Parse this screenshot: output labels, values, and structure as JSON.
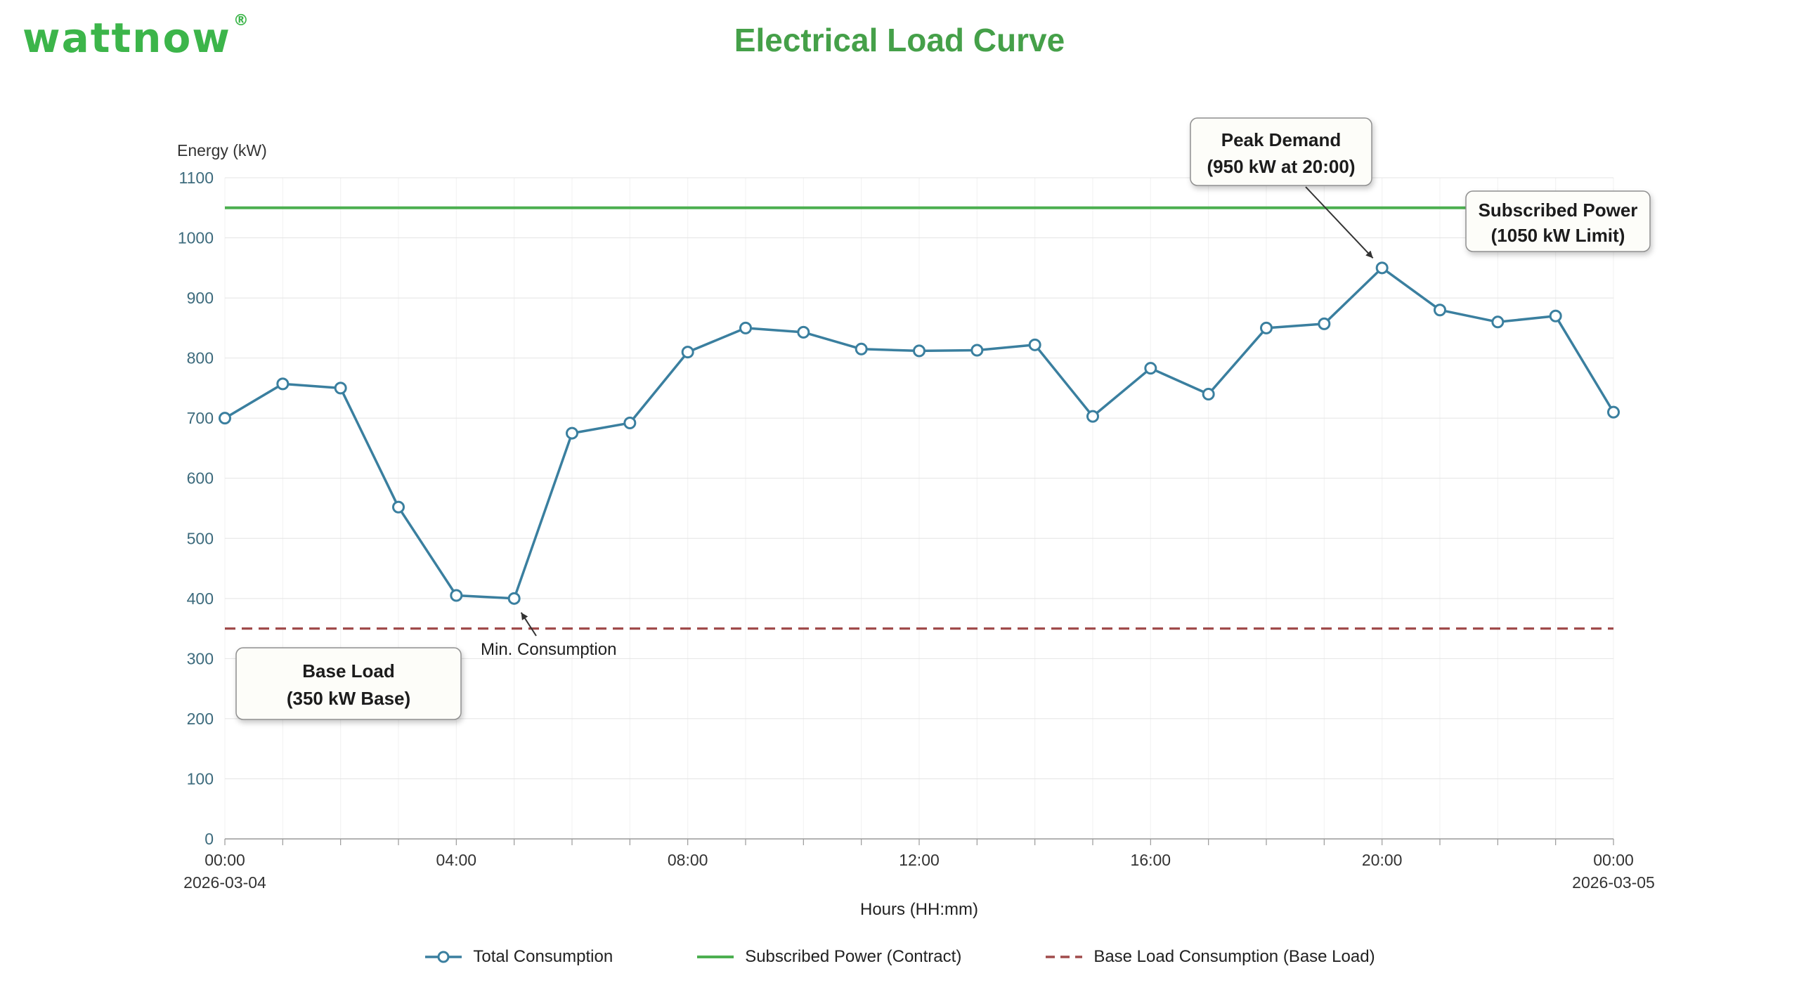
{
  "header": {
    "logo_text": "wattnow",
    "registered_mark": "®"
  },
  "chart_data": {
    "type": "line",
    "title": "Electrical Load Curve",
    "xlabel": "Hours (HH:mm)",
    "ylabel": "Energy (kW)",
    "ylim": [
      0,
      1100
    ],
    "y_ticks": [
      0,
      100,
      200,
      300,
      400,
      500,
      600,
      700,
      800,
      900,
      1000,
      1100
    ],
    "x_ticks": [
      {
        "label": "00:00",
        "sub": "2026-03-04",
        "hour": 0
      },
      {
        "label": "04:00",
        "hour": 4
      },
      {
        "label": "08:00",
        "hour": 8
      },
      {
        "label": "12:00",
        "hour": 12
      },
      {
        "label": "16:00",
        "hour": 16
      },
      {
        "label": "20:00",
        "hour": 20
      },
      {
        "label": "00:00",
        "sub": "2026-03-05",
        "hour": 24
      }
    ],
    "grid": true,
    "legend_position": "bottom",
    "series": [
      {
        "name": "Total Consumption",
        "style": "line-marker",
        "color": "#3a7f9f",
        "x_hours": [
          0,
          1,
          2,
          3,
          4,
          5,
          6,
          7,
          8,
          9,
          10,
          11,
          12,
          13,
          14,
          15,
          16,
          17,
          18,
          19,
          20,
          21,
          22,
          23,
          24
        ],
        "values": [
          700,
          757,
          750,
          552,
          405,
          400,
          675,
          692,
          810,
          850,
          843,
          815,
          812,
          813,
          822,
          703,
          783,
          740,
          850,
          857,
          950,
          880,
          860,
          870,
          710
        ]
      },
      {
        "name": "Subscribed Power (Contract)",
        "style": "line",
        "color": "#4caf50",
        "value": 1050
      },
      {
        "name": "Base Load Consumption (Base Load)",
        "style": "dashed",
        "color": "#a04b4b",
        "value": 350
      }
    ],
    "annotations": [
      {
        "id": "peak-demand",
        "lines": [
          "Peak Demand",
          "(950 kW at 20:00)"
        ],
        "anchor_hour": 20,
        "anchor_value": 950
      },
      {
        "id": "subscribed-power",
        "lines": [
          "Subscribed Power",
          "(1050 kW Limit)"
        ]
      },
      {
        "id": "base-load",
        "lines": [
          "Base Load",
          "(350 kW Base)"
        ]
      },
      {
        "id": "min-consumption",
        "lines": [
          "Min. Consumption"
        ],
        "anchor_hour": 5,
        "anchor_value": 400
      }
    ],
    "colors": {
      "title_green": "#45a049",
      "logo_green": "#3cb54a",
      "series_blue": "#3a7f9f",
      "contract_green": "#4caf50",
      "baseload_red": "#a04b4b",
      "y_tick_label": "#3d6b7d",
      "x_tick_label": "#333333",
      "gridline": "#e4e4e4"
    }
  }
}
